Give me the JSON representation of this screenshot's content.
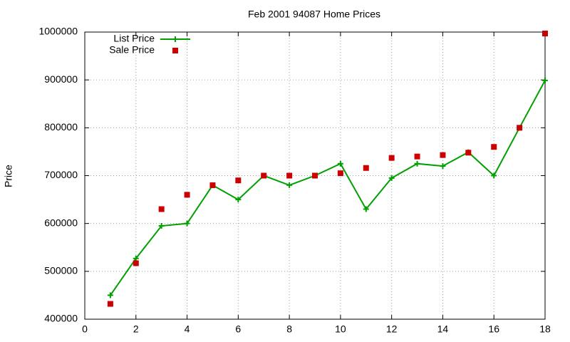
{
  "chart_data": {
    "type": "line",
    "title": "Feb 2001 94087 Home Prices",
    "y_label": "Price",
    "x": [
      1,
      2,
      3,
      4,
      5,
      6,
      7,
      8,
      9,
      10,
      11,
      12,
      13,
      14,
      15,
      16,
      17,
      18
    ],
    "series": [
      {
        "name": "List Price",
        "color": "#00a000",
        "style": "linespoints",
        "values": [
          450000,
          527000,
          595000,
          600000,
          680000,
          650000,
          700000,
          680000,
          700000,
          725000,
          630000,
          695000,
          725000,
          720000,
          749000,
          700000,
          800000,
          899000
        ]
      },
      {
        "name": "Sale Price",
        "color": "#cc0000",
        "style": "points",
        "values": [
          432000,
          517000,
          630000,
          660000,
          680000,
          690000,
          700000,
          700000,
          700000,
          705000,
          716000,
          737000,
          740000,
          743000,
          748000,
          760000,
          800000,
          997000
        ]
      }
    ],
    "xlim": [
      0,
      18
    ],
    "xticks": [
      0,
      2,
      4,
      6,
      8,
      10,
      12,
      14,
      16,
      18
    ],
    "ylim": [
      400000,
      1000000
    ],
    "yticks": [
      400000,
      500000,
      600000,
      700000,
      800000,
      900000,
      1000000
    ],
    "grid": true,
    "legend": "top-left"
  }
}
